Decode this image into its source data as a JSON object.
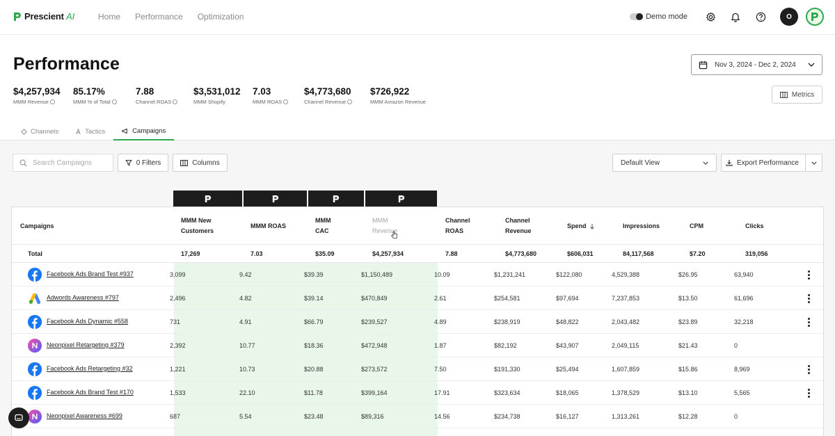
{
  "app": {
    "logo_text": "Prescient",
    "logo_ai": "AI",
    "nav": [
      "Home",
      "Performance",
      "Optimization"
    ],
    "demo_mode_label": "Demo mode",
    "avatar_initial": "O",
    "accent": "#2fa84f"
  },
  "header": {
    "title": "Performance",
    "date_range": "Nov 3, 2024 - Dec 2, 2024",
    "metrics_label": "Metrics",
    "kpis": [
      {
        "value": "$4,257,934",
        "label": "MMM Revenue"
      },
      {
        "value": "85.17%",
        "label": "MMM % of Total"
      },
      {
        "value": "7.88",
        "label": "Channel ROAS"
      },
      {
        "value": "$3,531,012",
        "label": "MMM Shopify"
      },
      {
        "value": "7.03",
        "label": "MMM ROAS"
      },
      {
        "value": "$4,773,680",
        "label": "Channel Revenue"
      },
      {
        "value": "$726,922",
        "label": "MMM Amazon Revenue"
      }
    ],
    "tabs": [
      {
        "label": "Channels",
        "icon": "channels-icon"
      },
      {
        "label": "Tactics",
        "icon": "tactics-icon"
      },
      {
        "label": "Campaigns",
        "icon": "campaigns-icon",
        "active": true
      }
    ]
  },
  "toolbar": {
    "search_placeholder": "Search Campaigns",
    "filters_label": "0 Filters",
    "columns_label": "Columns",
    "view_label": "Default View",
    "export_label": "Export Performance"
  },
  "table": {
    "columns": [
      {
        "label": "Campaigns"
      },
      {
        "label": "MMM New Customers"
      },
      {
        "label": "MMM ROAS"
      },
      {
        "label": "MMM CAC"
      },
      {
        "label": "MMM Revenue"
      },
      {
        "label": "Channel ROAS"
      },
      {
        "label": "Channel Revenue"
      },
      {
        "label": "Spend"
      },
      {
        "label": "Impressions"
      },
      {
        "label": "CPM"
      },
      {
        "label": "Clicks"
      }
    ],
    "total": {
      "label": "Total",
      "values": [
        "17,269",
        "7.03",
        "$35.09",
        "$4,257,934",
        "7.88",
        "$4,773,680",
        "$606,031",
        "84,117,568",
        "$7.20",
        "319,056"
      ]
    },
    "rows": [
      {
        "platform": "facebook",
        "name": "Facebook Ads Brand Test #937",
        "values": [
          "3,099",
          "9.42",
          "$39.39",
          "$1,150,489",
          "10.09",
          "$1,231,241",
          "$122,080",
          "4,529,388",
          "$26.95",
          "63,940"
        ],
        "menu": true
      },
      {
        "platform": "google",
        "name": "Adwords Awareness #797",
        "values": [
          "2,496",
          "4.82",
          "$39.14",
          "$470,849",
          "2.61",
          "$254,581",
          "$97,694",
          "7,237,853",
          "$13.50",
          "61,696"
        ],
        "menu": true
      },
      {
        "platform": "facebook",
        "name": "Facebook Ads Dynamic #558",
        "values": [
          "731",
          "4.91",
          "$66.79",
          "$239,527",
          "4.89",
          "$238,919",
          "$48,822",
          "2,043,482",
          "$23.89",
          "32,218"
        ],
        "menu": true
      },
      {
        "platform": "neonpixel",
        "name": "Neonpixel Retargeting #379",
        "values": [
          "2,392",
          "10.77",
          "$18.36",
          "$472,948",
          "1.87",
          "$82,192",
          "$43,907",
          "2,049,115",
          "$21.43",
          "0"
        ],
        "menu": false
      },
      {
        "platform": "facebook",
        "name": "Facebook Ads Retargeting #32",
        "values": [
          "1,221",
          "10.73",
          "$20.88",
          "$273,572",
          "7.50",
          "$191,330",
          "$25,494",
          "1,607,859",
          "$15.86",
          "8,969"
        ],
        "menu": true
      },
      {
        "platform": "facebook",
        "name": "Facebook Ads Brand Test #170",
        "values": [
          "1,533",
          "22.10",
          "$11.78",
          "$399,164",
          "17.91",
          "$323,634",
          "$18,065",
          "1,378,529",
          "$13.10",
          "5,565"
        ],
        "menu": true
      },
      {
        "platform": "neonpixel",
        "name": "Neonpixel Awareness #699",
        "values": [
          "687",
          "5.54",
          "$23.48",
          "$89,316",
          "14.56",
          "$234,738",
          "$16,127",
          "1,313,261",
          "$12.28",
          "0"
        ],
        "menu": false
      }
    ]
  }
}
